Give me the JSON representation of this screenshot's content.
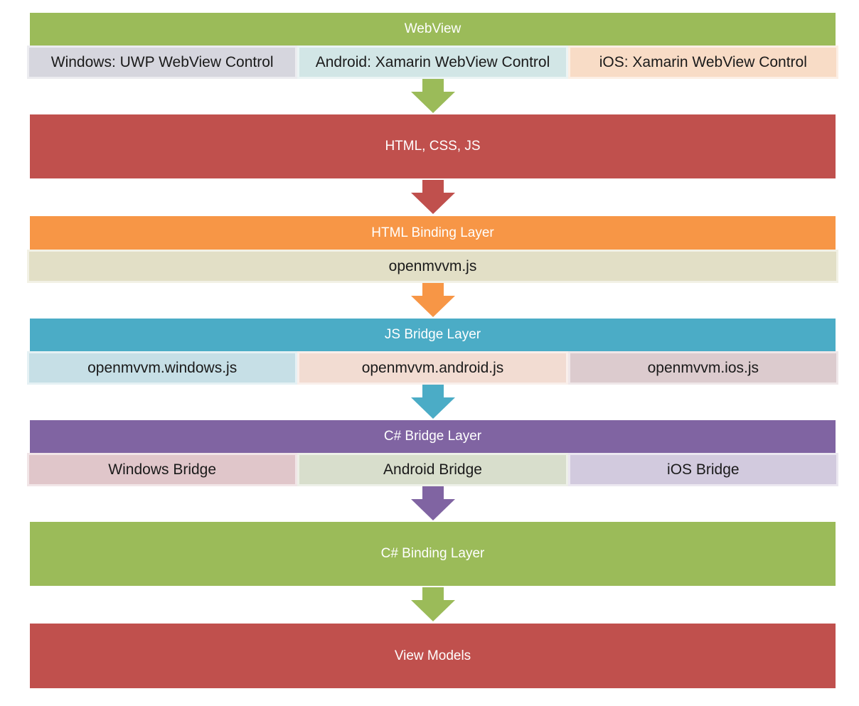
{
  "colors": {
    "green": "#9BBB59",
    "red": "#C0504D",
    "orange": "#F79646",
    "teal": "#4BACC6",
    "purple": "#8064A2"
  },
  "webview": {
    "title": "WebView",
    "cells": [
      "Windows: UWP WebView Control",
      "Android: Xamarin WebView Control",
      "iOS: Xamarin WebView Control"
    ]
  },
  "html_css_js": {
    "title": "HTML, CSS, JS"
  },
  "html_binding": {
    "title": "HTML Binding Layer",
    "cells": [
      "openmvvm.js"
    ]
  },
  "js_bridge": {
    "title": "JS Bridge Layer",
    "cells": [
      "openmvvm.windows.js",
      "openmvvm.android.js",
      "openmvvm.ios.js"
    ]
  },
  "cs_bridge": {
    "title": "C# Bridge Layer",
    "cells": [
      "Windows Bridge",
      "Android Bridge",
      "iOS Bridge"
    ]
  },
  "cs_binding": {
    "title": "C# Binding Layer"
  },
  "view_models": {
    "title": "View Models"
  }
}
